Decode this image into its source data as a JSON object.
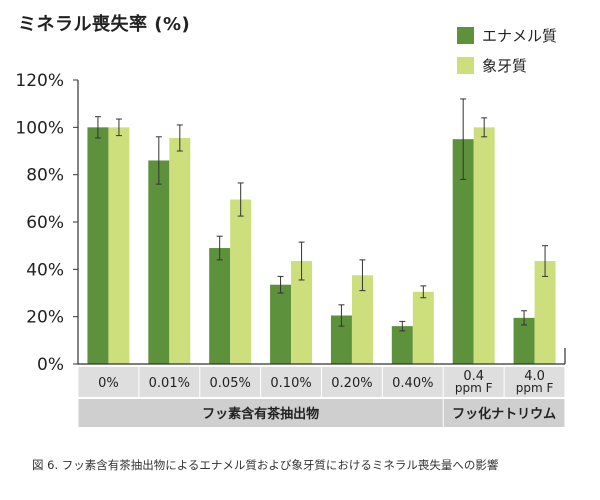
{
  "chart_data": {
    "type": "bar",
    "title": "ミネラル喪失率 (%)",
    "categories": [
      "0%",
      "0.01%",
      "0.05%",
      "0.10%",
      "0.20%",
      "0.40%",
      "0.4\nppm F",
      "4.0\nppm F"
    ],
    "groups": [
      {
        "label": "フッ素含有茶抽出物",
        "span": [
          0,
          5
        ]
      },
      {
        "label": "フッ化ナトリウム",
        "span": [
          6,
          7
        ]
      }
    ],
    "series": [
      {
        "name": "エナメル質",
        "color": "#5e913c",
        "values": [
          100,
          86,
          49,
          33.5,
          20.5,
          16,
          95,
          19.5
        ],
        "errors": [
          4.5,
          10,
          5,
          3.5,
          4.5,
          2,
          17,
          3
        ]
      },
      {
        "name": "象牙質",
        "color": "#cddf7c",
        "values": [
          100,
          95.5,
          69.5,
          43.5,
          37.5,
          30.5,
          100,
          43.5
        ],
        "errors": [
          3.5,
          5.5,
          7,
          8,
          6.5,
          2.5,
          4,
          6.5
        ]
      }
    ],
    "yticks": [
      "0%",
      "20%",
      "40%",
      "60%",
      "80%",
      "100%",
      "120%"
    ],
    "ylim": [
      0,
      120
    ],
    "grid": false,
    "legend": "top-right"
  },
  "caption": "図 6. フッ素含有茶抽出物によるエナメル質および象牙質におけるミネラル喪失量への影響"
}
